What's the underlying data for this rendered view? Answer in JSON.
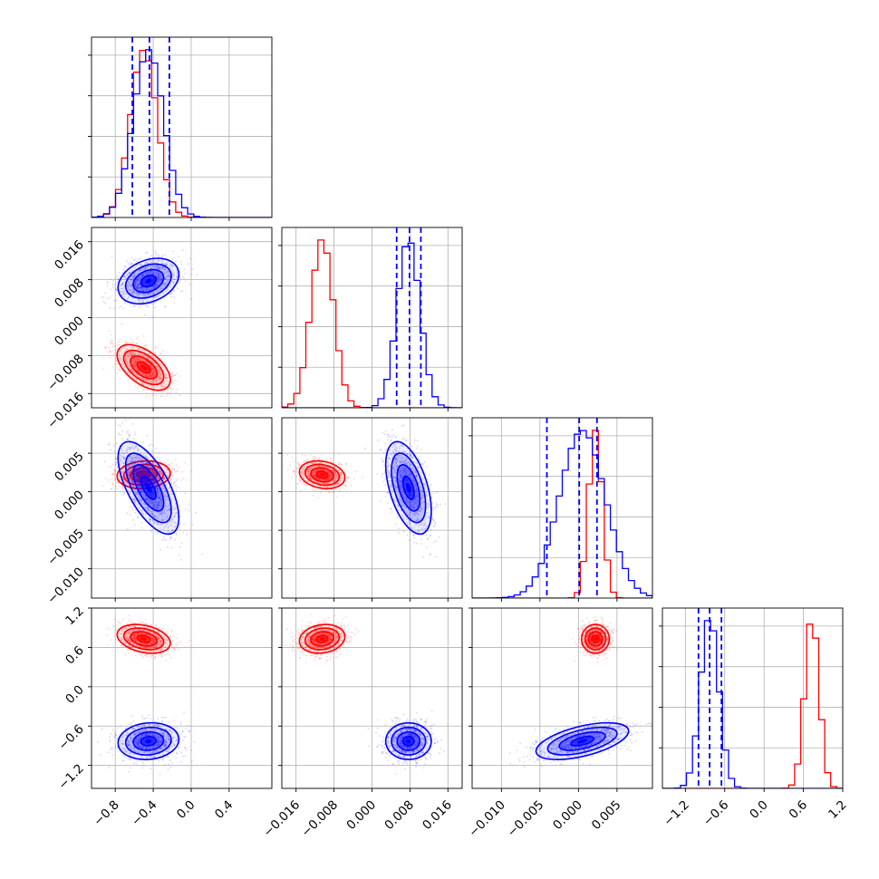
{
  "colors": {
    "red": "#ff0000",
    "blue": "#0000ff",
    "grid": "#b0b0b0",
    "frame": "#000000"
  },
  "chart_data": {
    "type": "corner",
    "grid": true,
    "n_params": 4,
    "params": [
      {
        "range": [
          -1.05,
          0.85
        ],
        "ticks": [
          -0.8,
          -0.4,
          0.0,
          0.4
        ],
        "tick_labels": [
          "−0.8",
          "−0.4",
          "0.0",
          "0.4"
        ]
      },
      {
        "range": [
          -0.019,
          0.019
        ],
        "ticks": [
          -0.016,
          -0.008,
          0.0,
          0.008,
          0.016
        ],
        "tick_labels": [
          "−0.016",
          "−0.008",
          "0.000",
          "0.008",
          "0.016"
        ]
      },
      {
        "range": [
          -0.0138,
          0.0096
        ],
        "ticks": [
          -0.01,
          -0.005,
          0.0,
          0.005
        ],
        "tick_labels": [
          "−0.010",
          "−0.005",
          "0.000",
          "0.005"
        ]
      },
      {
        "range": [
          -1.55,
          1.2
        ],
        "ticks": [
          -1.2,
          -0.6,
          0.0,
          0.6,
          1.2
        ],
        "tick_labels": [
          "−1.2",
          "−0.6",
          "0.0",
          "0.6",
          "1.2"
        ]
      }
    ],
    "series": [
      {
        "name": "",
        "color": "#ff0000",
        "means": [
          -0.5,
          -0.0105,
          0.0022,
          0.73
        ],
        "sigmas": [
          0.14,
          0.0024,
          0.0009,
          0.11
        ],
        "correlations": {
          "0-1": -0.55,
          "0-2": 0.1,
          "0-3": -0.3,
          "1-2": -0.2,
          "1-3": 0.15,
          "2-3": 0.0
        }
      },
      {
        "name": "",
        "color": "#0000ff",
        "means": [
          -0.45,
          0.0077,
          0.0005,
          -0.83
        ],
        "sigmas": [
          0.16,
          0.0024,
          0.003,
          0.14
        ],
        "correlations": {
          "0-1": 0.3,
          "0-2": -0.65,
          "0-3": 0.1,
          "1-2": -0.5,
          "1-3": 0.0,
          "2-3": 0.55
        }
      }
    ],
    "quantile_lines": [
      [
        -0.62,
        -0.44,
        -0.23
      ],
      [
        0.0052,
        0.0079,
        0.0103
      ],
      [
        -0.0041,
        0.0001,
        0.0024
      ],
      [
        -1.0,
        -0.83,
        -0.65
      ]
    ]
  }
}
